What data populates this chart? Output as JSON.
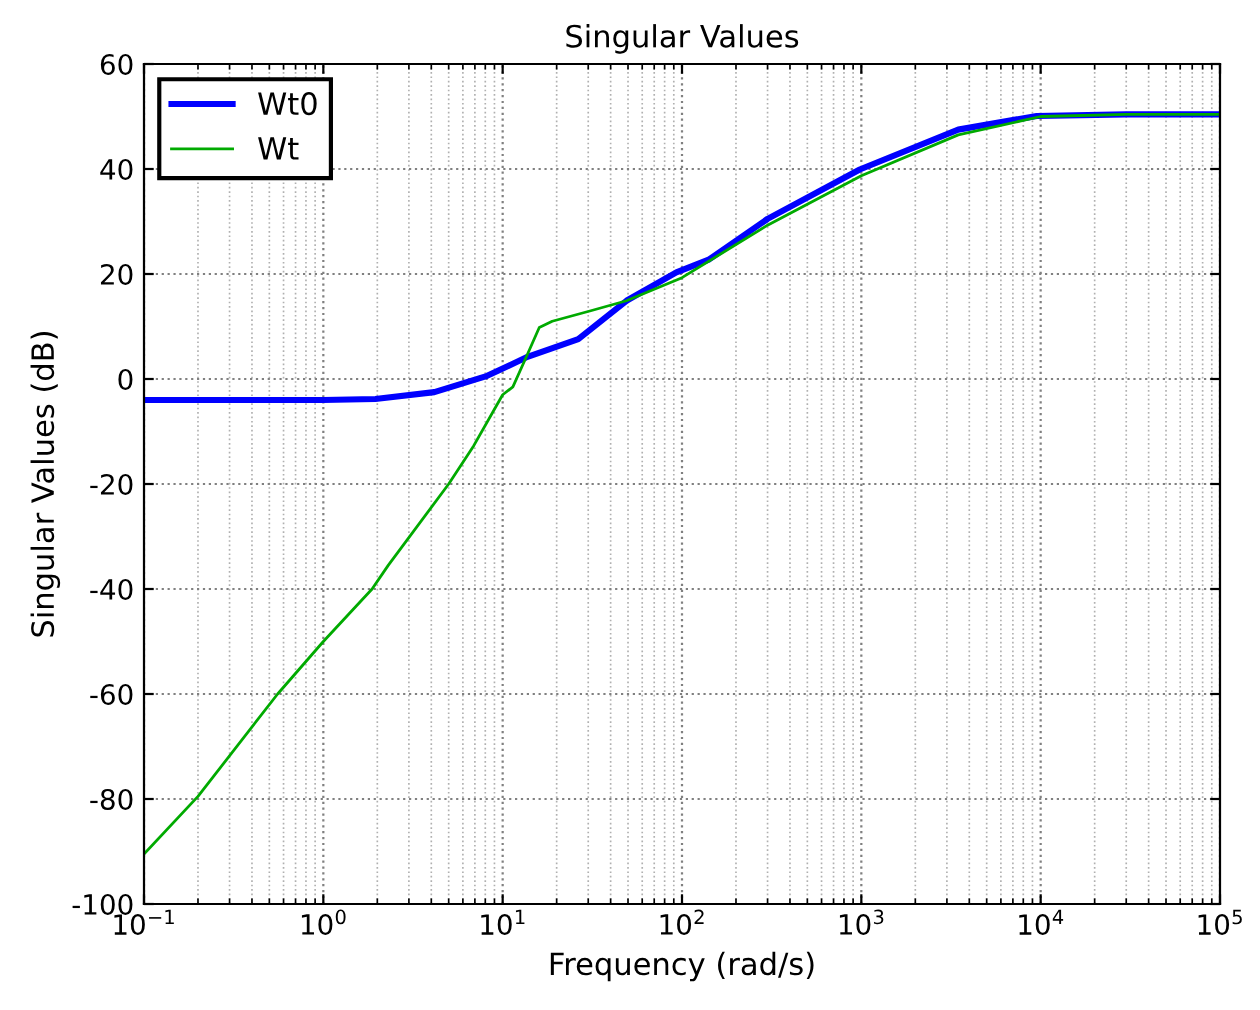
{
  "chart_data": {
    "type": "line",
    "title": "Singular Values",
    "xlabel": "Frequency (rad/s)",
    "ylabel": "Singular Values (dB)",
    "log": "x",
    "xlim": [
      0.1,
      100000
    ],
    "ylim": [
      -100,
      60
    ],
    "xticks": [
      {
        "value": 0.1,
        "label": "10$^{−1}$"
      },
      {
        "value": 1,
        "label": "10$^{0}$"
      },
      {
        "value": 10,
        "label": "10$^{1}$"
      },
      {
        "value": 100,
        "label": "10$^{2}$"
      },
      {
        "value": 1000,
        "label": "10$^{3}$"
      },
      {
        "value": 10000,
        "label": "10$^{4}$"
      },
      {
        "value": 100000,
        "label": "10$^{5}$"
      }
    ],
    "yticks": [
      -100,
      -80,
      -60,
      -40,
      -20,
      0,
      20,
      40,
      60
    ],
    "grid": true,
    "legend": "top left",
    "line_style": "solid",
    "marker": "none",
    "series": [
      {
        "name": "Wt0",
        "color": "#0000ff",
        "x": [
          0.1,
          0.5,
          1,
          1.95,
          4.16,
          8.2,
          13.5,
          26.4,
          49,
          93,
          142,
          300,
          980,
          3470,
          9500,
          30000,
          100000
        ],
        "values": [
          -4,
          -4,
          -4,
          -3.8,
          -2.5,
          0.6,
          4.1,
          7.6,
          14.9,
          20.3,
          22.8,
          30.5,
          39.9,
          47.5,
          50.1,
          50.4,
          50.4
        ]
      },
      {
        "name": "Wt",
        "color": "#00aa00",
        "x": [
          0.1,
          0.2,
          0.556,
          1,
          1.87,
          2.3,
          5,
          6.9,
          10,
          11.4,
          13.5,
          16,
          18.9,
          31,
          49,
          100,
          300,
          1000,
          3470,
          10000,
          30000,
          100000
        ],
        "values": [
          -90.5,
          -79.5,
          -60,
          -50,
          -40,
          -35.5,
          -20,
          -12.7,
          -3,
          -1.5,
          4.1,
          9.8,
          11,
          13,
          14.9,
          19.3,
          29.3,
          38.7,
          46.5,
          50,
          50.4,
          50.4
        ]
      }
    ]
  }
}
